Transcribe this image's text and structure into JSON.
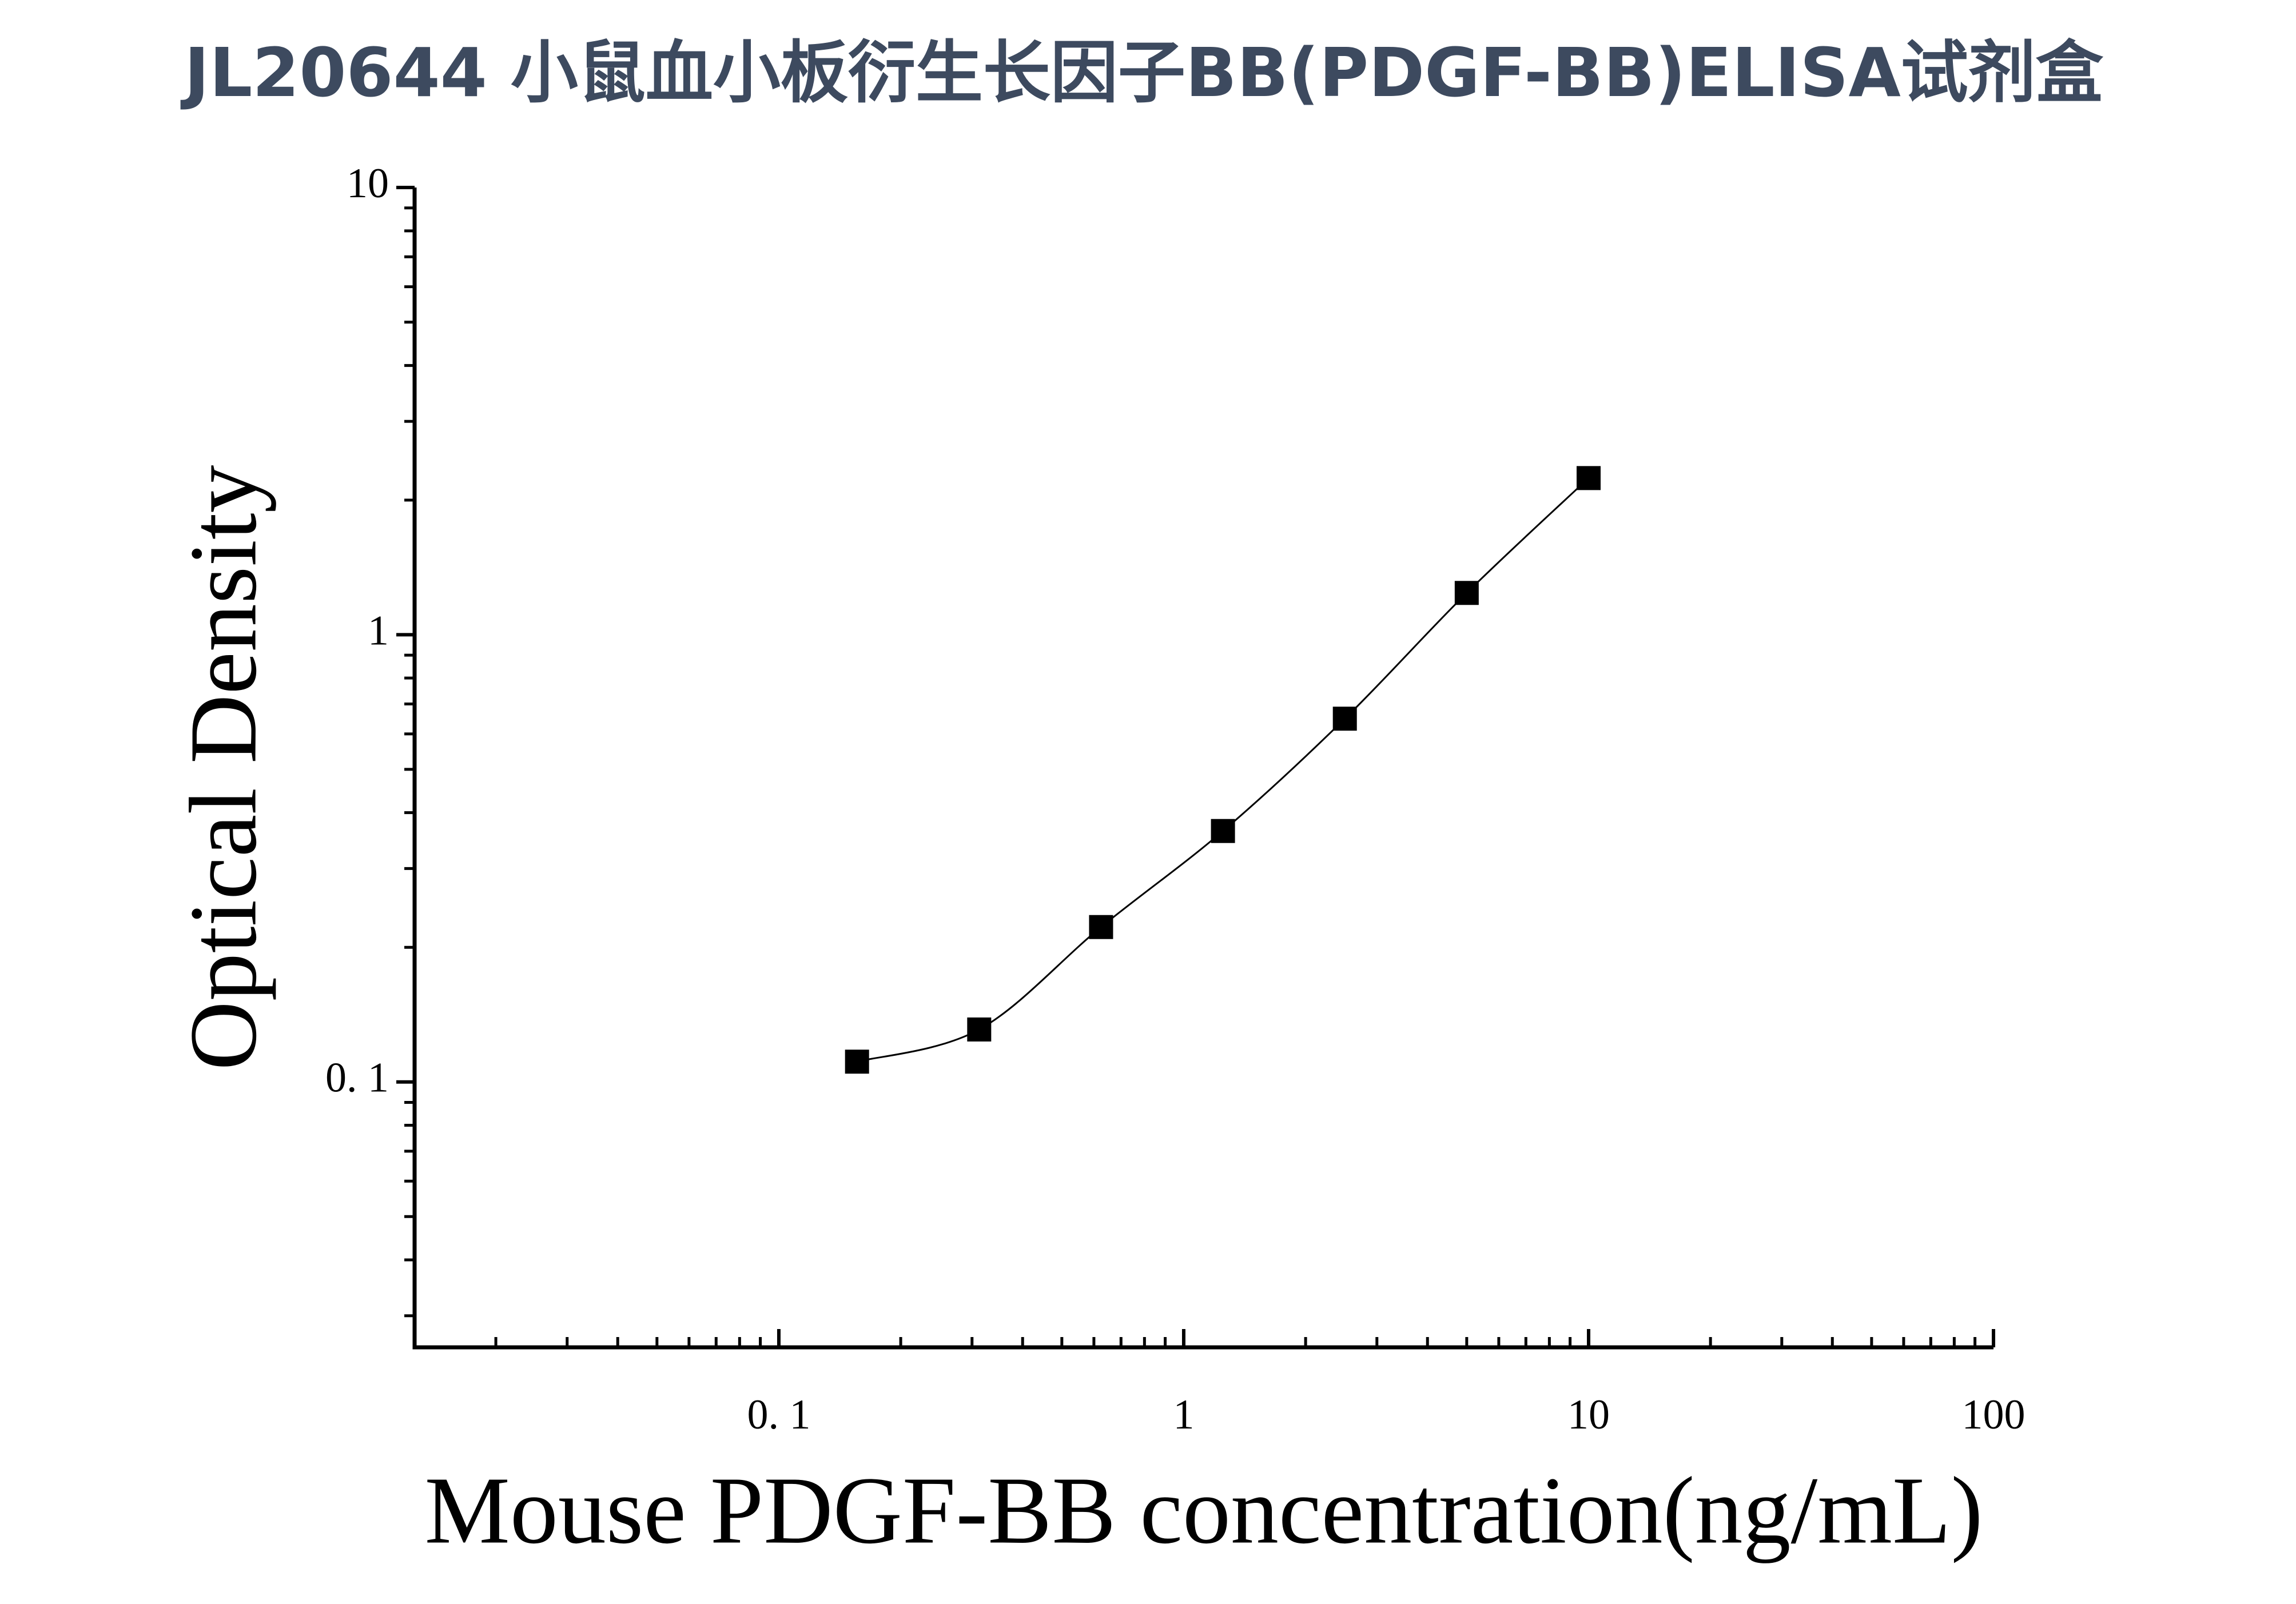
{
  "chart_data": {
    "type": "scatter",
    "title": "JL20644 小鼠血小板衍生长因子BB(PDGF-BB)ELISA试剂盒",
    "x_label": "Mouse PDGF-BB concentration(ng/mL)",
    "y_label": "Optical Density",
    "x": [
      0.156,
      0.3125,
      0.625,
      1.25,
      2.5,
      5,
      10
    ],
    "values": [
      0.111,
      0.131,
      0.222,
      0.364,
      0.649,
      1.24,
      2.24
    ],
    "color": "#000000",
    "xlog": true,
    "ylog": true,
    "xlim": [
      0.0126,
      100
    ],
    "ylim": [
      0.0255,
      10
    ],
    "xticks": [
      {
        "value": 0.1,
        "label": "0. 1"
      },
      1,
      10,
      100
    ],
    "yticks": [
      {
        "value": 0.1,
        "label": "0. 1"
      },
      1,
      10
    ],
    "fit_line": true
  }
}
